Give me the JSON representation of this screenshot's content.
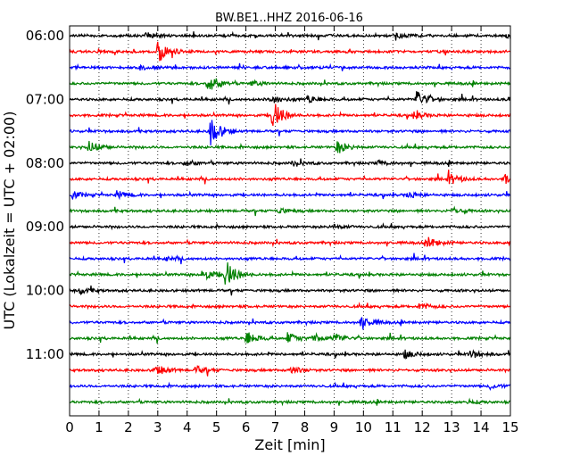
{
  "chart_data": {
    "type": "line",
    "subtype": "seismogram-dayplot",
    "title": "BW.BE1..HHZ 2016-06-16",
    "xlabel": "Zeit  [min]",
    "ylabel": "UTC (Lokalzeit = UTC + 02:00)",
    "xlim": [
      0,
      15
    ],
    "x_ticks": [
      "0",
      "1",
      "2",
      "3",
      "4",
      "5",
      "6",
      "7",
      "8",
      "9",
      "10",
      "11",
      "12",
      "13",
      "14",
      "15"
    ],
    "y_ticks": [
      "06:00",
      "07:00",
      "08:00",
      "09:00",
      "10:00",
      "11:00"
    ],
    "grid": "vertical-dotted",
    "trace_count": 24,
    "colors": [
      "#000000",
      "#ff0000",
      "#0000ff",
      "#008000"
    ],
    "events": [
      {
        "trace": 0,
        "t": 2.6,
        "amp": 0.45
      },
      {
        "trace": 0,
        "t": 11.1,
        "amp": 0.4
      },
      {
        "trace": 0,
        "t": 14.9,
        "amp": 0.55
      },
      {
        "trace": 1,
        "t": 3.0,
        "amp": 1.8
      },
      {
        "trace": 2,
        "t": 2.4,
        "amp": 0.3
      },
      {
        "trace": 3,
        "t": 4.7,
        "amp": 1.6
      },
      {
        "trace": 3,
        "t": 6.2,
        "amp": 0.4
      },
      {
        "trace": 4,
        "t": 6.8,
        "amp": 0.7
      },
      {
        "trace": 4,
        "t": 8.1,
        "amp": 0.6
      },
      {
        "trace": 4,
        "t": 11.8,
        "amp": 1.4
      },
      {
        "trace": 4,
        "t": 14.9,
        "amp": 0.3
      },
      {
        "trace": 5,
        "t": 6.9,
        "amp": 2.4
      },
      {
        "trace": 5,
        "t": 11.7,
        "amp": 0.6
      },
      {
        "trace": 6,
        "t": 4.8,
        "amp": 2.2
      },
      {
        "trace": 7,
        "t": 0.65,
        "amp": 1.0
      },
      {
        "trace": 7,
        "t": 9.1,
        "amp": 1.0
      },
      {
        "trace": 8,
        "t": 3.9,
        "amp": 0.5
      },
      {
        "trace": 8,
        "t": 7.6,
        "amp": 0.4
      },
      {
        "trace": 8,
        "t": 10.5,
        "amp": 0.35
      },
      {
        "trace": 9,
        "t": 12.9,
        "amp": 0.9
      },
      {
        "trace": 9,
        "t": 14.8,
        "amp": 0.7
      },
      {
        "trace": 10,
        "t": 0.1,
        "amp": 0.5
      },
      {
        "trace": 10,
        "t": 1.6,
        "amp": 0.55
      },
      {
        "trace": 10,
        "t": 11.5,
        "amp": 0.5
      },
      {
        "trace": 11,
        "t": 7.1,
        "amp": 0.45
      },
      {
        "trace": 11,
        "t": 13.0,
        "amp": 0.55
      },
      {
        "trace": 12,
        "t": 8.9,
        "amp": 0.4
      },
      {
        "trace": 13,
        "t": 12.2,
        "amp": 0.8
      },
      {
        "trace": 13,
        "t": 15.0,
        "amp": 0.7
      },
      {
        "trace": 14,
        "t": 3.3,
        "amp": 0.25
      },
      {
        "trace": 15,
        "t": 4.5,
        "amp": 1.0
      },
      {
        "trace": 15,
        "t": 5.3,
        "amp": 2.3
      },
      {
        "trace": 16,
        "t": 0.35,
        "amp": 0.5
      },
      {
        "trace": 17,
        "t": 11.9,
        "amp": 0.5
      },
      {
        "trace": 18,
        "t": 9.9,
        "amp": 1.0
      },
      {
        "trace": 19,
        "t": 6.0,
        "amp": 1.1
      },
      {
        "trace": 19,
        "t": 7.4,
        "amp": 0.9
      },
      {
        "trace": 19,
        "t": 8.3,
        "amp": 0.7
      },
      {
        "trace": 19,
        "t": 9.0,
        "amp": 0.7
      },
      {
        "trace": 20,
        "t": 11.4,
        "amp": 0.6
      },
      {
        "trace": 20,
        "t": 13.6,
        "amp": 0.7
      },
      {
        "trace": 21,
        "t": 2.9,
        "amp": 0.9
      },
      {
        "trace": 21,
        "t": 4.3,
        "amp": 0.6
      },
      {
        "trace": 21,
        "t": 7.5,
        "amp": 0.6
      },
      {
        "trace": 22,
        "t": 14.3,
        "amp": 0.4
      },
      {
        "trace": 23,
        "t": 13.5,
        "amp": 0.3
      }
    ]
  }
}
